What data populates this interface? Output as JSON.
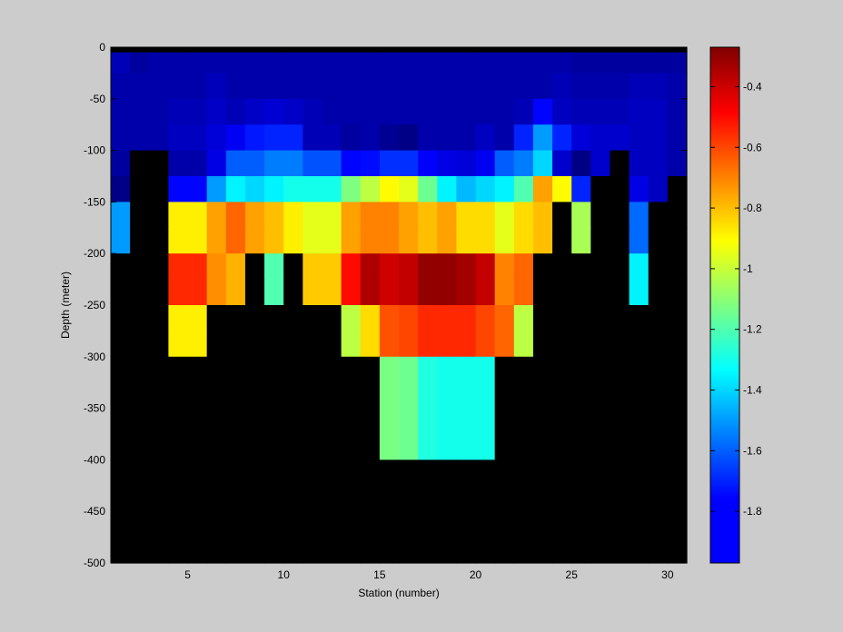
{
  "chart_data": {
    "type": "heatmap",
    "xlabel": "Station (number)",
    "ylabel": "Depth (meter)",
    "xlim": [
      1,
      31
    ],
    "ylim": [
      -500,
      0
    ],
    "xticks": [
      5,
      10,
      15,
      20,
      25,
      30
    ],
    "yticks": [
      0,
      -50,
      -100,
      -150,
      -200,
      -250,
      -300,
      -350,
      -400,
      -450,
      -500
    ],
    "colorbar": {
      "colormap": "jet",
      "clim": [
        -1.97,
        -0.27
      ],
      "ticks": [
        -0.4,
        -0.6,
        -0.8,
        -1,
        -1.2,
        -1.4,
        -1.6,
        -1.8
      ]
    },
    "masked_color": "#000000",
    "background_color": "#cccccc",
    "x_edges": [
      1,
      2,
      3,
      4,
      5,
      6,
      7,
      8,
      9,
      10,
      11,
      12,
      13,
      14,
      15,
      16,
      17,
      18,
      19,
      20,
      21,
      22,
      23,
      24,
      25,
      26,
      27,
      28,
      29,
      30,
      31
    ],
    "rows": [
      {
        "depth": [
          -5,
          0
        ],
        "values": [
          null,
          null,
          null,
          null,
          null,
          null,
          null,
          null,
          null,
          null,
          null,
          null,
          null,
          null,
          null,
          null,
          null,
          null,
          null,
          null,
          null,
          null,
          null,
          null,
          null,
          null,
          null,
          null,
          null,
          null
        ]
      },
      {
        "depth": [
          -25,
          -5
        ],
        "values": [
          -1.88,
          -1.92,
          -1.9,
          -1.9,
          -1.9,
          -1.9,
          -1.9,
          -1.9,
          -1.9,
          -1.9,
          -1.9,
          -1.9,
          -1.9,
          -1.9,
          -1.9,
          -1.9,
          -1.9,
          -1.9,
          -1.9,
          -1.9,
          -1.9,
          -1.9,
          -1.9,
          -1.9,
          -1.92,
          -1.92,
          -1.92,
          -1.92,
          -1.92,
          -1.92
        ]
      },
      {
        "depth": [
          -50,
          -25
        ],
        "values": [
          -1.9,
          -1.9,
          -1.9,
          -1.9,
          -1.9,
          -1.87,
          -1.9,
          -1.9,
          -1.9,
          -1.9,
          -1.9,
          -1.9,
          -1.9,
          -1.9,
          -1.9,
          -1.9,
          -1.9,
          -1.9,
          -1.9,
          -1.9,
          -1.9,
          -1.9,
          -1.9,
          -1.88,
          -1.9,
          -1.9,
          -1.9,
          -1.88,
          -1.88,
          -1.9
        ]
      },
      {
        "depth": [
          -75,
          -50
        ],
        "values": [
          -1.9,
          -1.9,
          -1.9,
          -1.88,
          -1.88,
          -1.85,
          -1.88,
          -1.85,
          -1.83,
          -1.85,
          -1.88,
          -1.9,
          -1.9,
          -1.9,
          -1.9,
          -1.9,
          -1.9,
          -1.9,
          -1.9,
          -1.9,
          -1.9,
          -1.88,
          -1.75,
          -1.86,
          -1.88,
          -1.88,
          -1.88,
          -1.86,
          -1.86,
          -1.9
        ]
      },
      {
        "depth": [
          -100,
          -75
        ],
        "values": [
          -1.9,
          -1.9,
          -1.9,
          -1.86,
          -1.86,
          -1.82,
          -1.78,
          -1.72,
          -1.7,
          -1.7,
          -1.88,
          -1.88,
          -1.92,
          -1.9,
          -1.94,
          -1.96,
          -1.9,
          -1.9,
          -1.9,
          -1.86,
          -1.9,
          -1.7,
          -1.5,
          -1.7,
          -1.82,
          -1.84,
          -1.84,
          -1.86,
          -1.86,
          -1.9
        ]
      },
      {
        "depth": [
          -125,
          -100
        ],
        "values": [
          -1.92,
          null,
          null,
          -1.9,
          -1.9,
          -1.8,
          -1.6,
          -1.6,
          -1.55,
          -1.55,
          -1.62,
          -1.62,
          -1.75,
          -1.74,
          -1.68,
          -1.68,
          -1.76,
          -1.8,
          -1.82,
          -1.78,
          -1.6,
          -1.55,
          -1.4,
          -1.84,
          -1.96,
          -1.84,
          null,
          -1.86,
          -1.86,
          -1.9
        ]
      },
      {
        "depth": [
          -150,
          -125
        ],
        "values": [
          -1.96,
          null,
          null,
          -1.75,
          -1.75,
          -1.5,
          -1.35,
          -1.4,
          -1.35,
          -1.3,
          -1.3,
          -1.3,
          -1.12,
          -1.02,
          -0.9,
          -0.95,
          -1.15,
          -1.35,
          -1.45,
          -1.4,
          -1.35,
          -1.2,
          -0.75,
          -0.9,
          -1.7,
          null,
          null,
          -1.8,
          -1.86,
          null
        ]
      },
      {
        "depth": [
          -175,
          -150
        ],
        "values": [
          -1.5,
          null,
          null,
          -0.88,
          -0.88,
          -0.75,
          -0.65,
          -0.75,
          -0.8,
          -0.88,
          -0.95,
          -0.95,
          -0.75,
          -0.7,
          -0.7,
          -0.75,
          -0.8,
          -0.75,
          -0.85,
          -0.85,
          -0.95,
          -0.85,
          -0.8,
          null,
          -1.05,
          null,
          null,
          -1.58,
          null,
          null
        ]
      },
      {
        "depth": [
          -200,
          -175
        ],
        "values": [
          -1.5,
          null,
          null,
          -0.88,
          -0.88,
          -0.75,
          -0.65,
          -0.75,
          -0.8,
          -0.88,
          -0.95,
          -0.95,
          -0.75,
          -0.7,
          -0.7,
          -0.75,
          -0.8,
          -0.75,
          -0.85,
          -0.85,
          -0.95,
          -0.85,
          -0.8,
          null,
          -1.05,
          null,
          null,
          -1.58,
          null,
          null
        ]
      },
      {
        "depth": [
          -225,
          -200
        ],
        "values": [
          null,
          null,
          null,
          -0.55,
          -0.55,
          -0.72,
          -0.78,
          null,
          -1.2,
          null,
          -0.82,
          -0.82,
          -0.5,
          -0.35,
          -0.4,
          -0.38,
          -0.3,
          -0.3,
          -0.33,
          -0.38,
          -0.7,
          -0.65,
          null,
          null,
          null,
          null,
          null,
          -1.35,
          null,
          null
        ]
      },
      {
        "depth": [
          -250,
          -225
        ],
        "values": [
          null,
          null,
          null,
          -0.55,
          -0.55,
          -0.72,
          -0.78,
          null,
          -1.2,
          null,
          -0.82,
          -0.82,
          -0.5,
          -0.35,
          -0.4,
          -0.38,
          -0.3,
          -0.3,
          -0.33,
          -0.38,
          -0.7,
          -0.65,
          null,
          null,
          null,
          null,
          null,
          -1.35,
          null,
          null
        ]
      },
      {
        "depth": [
          -275,
          -250
        ],
        "values": [
          null,
          null,
          null,
          -0.88,
          -0.88,
          null,
          null,
          null,
          null,
          null,
          null,
          null,
          -1.02,
          -0.85,
          -0.62,
          -0.6,
          -0.55,
          -0.55,
          -0.55,
          -0.6,
          -0.65,
          -1.02,
          null,
          null,
          null,
          null,
          null,
          null,
          null,
          null
        ]
      },
      {
        "depth": [
          -300,
          -275
        ],
        "values": [
          null,
          null,
          null,
          -0.88,
          -0.88,
          null,
          null,
          null,
          null,
          null,
          null,
          null,
          -1.02,
          -0.85,
          -0.62,
          -0.6,
          -0.55,
          -0.55,
          -0.55,
          -0.6,
          -0.65,
          -1.02,
          null,
          null,
          null,
          null,
          null,
          null,
          null,
          null
        ]
      },
      {
        "depth": [
          -400,
          -300
        ],
        "values": [
          null,
          null,
          null,
          null,
          null,
          null,
          null,
          null,
          null,
          null,
          null,
          null,
          null,
          null,
          -1.13,
          -1.15,
          -1.28,
          -1.3,
          -1.3,
          -1.3,
          null,
          null,
          null,
          null,
          null,
          null,
          null,
          null,
          null,
          null
        ]
      },
      {
        "depth": [
          -500,
          -400
        ],
        "values": [
          null,
          null,
          null,
          null,
          null,
          null,
          null,
          null,
          null,
          null,
          null,
          null,
          null,
          null,
          null,
          null,
          null,
          null,
          null,
          null,
          null,
          null,
          null,
          null,
          null,
          null,
          null,
          null,
          null,
          null
        ]
      }
    ]
  }
}
